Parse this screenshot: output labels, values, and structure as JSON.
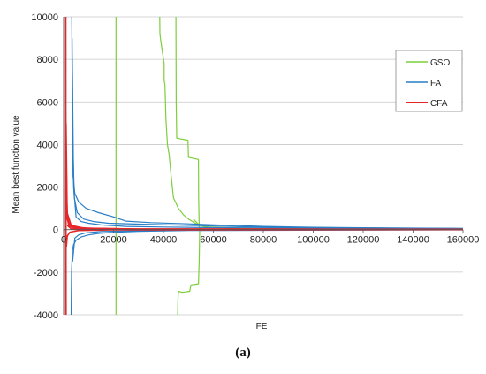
{
  "caption": "(a)",
  "chart_data": {
    "type": "line",
    "xlabel": "FE",
    "ylabel": "Mean best function value",
    "xlim": [
      0,
      160000
    ],
    "ylim": [
      -4000,
      10000
    ],
    "x_ticks": [
      "0",
      "20000",
      "40000",
      "60000",
      "80000",
      "100000",
      "120000",
      "140000",
      "160000"
    ],
    "y_ticks": [
      "-4000",
      "-2000",
      "0",
      "2000",
      "4000",
      "6000",
      "8000",
      "10000"
    ],
    "grid": "horizontal",
    "legend_position": "right",
    "legend": [
      "GSO",
      "FA",
      "CFA"
    ],
    "colors": {
      "GSO": "#7dce3c",
      "FA": "#2a7fc6",
      "CFA": "#e8262a"
    },
    "series": [
      {
        "name": "GSO",
        "runs": [
          [
            [
              21000,
              10000
            ],
            [
              21000,
              -4000
            ]
          ],
          [
            [
              38500,
              10000
            ],
            [
              38600,
              9200
            ],
            [
              39000,
              8800
            ],
            [
              40300,
              7800
            ],
            [
              40300,
              7000
            ],
            [
              40600,
              6800
            ],
            [
              41000,
              5200
            ],
            [
              41600,
              4000
            ],
            [
              42300,
              3500
            ],
            [
              43000,
              2600
            ],
            [
              44000,
              1500
            ],
            [
              46000,
              1000
            ],
            [
              48000,
              700
            ],
            [
              50000,
              500
            ],
            [
              52000,
              350
            ],
            [
              54000,
              220
            ],
            [
              56000,
              150
            ],
            [
              60000,
              100
            ],
            [
              80000,
              60
            ],
            [
              160000,
              30
            ]
          ],
          [
            [
              45000,
              10000
            ],
            [
              45100,
              6000
            ],
            [
              45300,
              4300
            ],
            [
              49800,
              4200
            ],
            [
              50000,
              3400
            ],
            [
              54000,
              3300
            ],
            [
              54100,
              1500
            ],
            [
              54300,
              200
            ],
            [
              54500,
              0
            ],
            [
              54300,
              -1500
            ],
            [
              54000,
              -2550
            ],
            [
              51000,
              -2600
            ],
            [
              50500,
              -2900
            ],
            [
              47500,
              -2950
            ],
            [
              46000,
              -2900
            ],
            [
              45800,
              -3300
            ],
            [
              45700,
              -4000
            ]
          ],
          [
            [
              52000,
              500
            ],
            [
              54000,
              250
            ],
            [
              58000,
              120
            ],
            [
              70000,
              60
            ],
            [
              160000,
              25
            ]
          ]
        ]
      },
      {
        "name": "FA",
        "runs": [
          [
            [
              3300,
              10000
            ],
            [
              3500,
              5000
            ],
            [
              3800,
              2500
            ],
            [
              4500,
              1700
            ],
            [
              6000,
              1300
            ],
            [
              9000,
              1000
            ],
            [
              14000,
              800
            ],
            [
              20000,
              600
            ],
            [
              25000,
              400
            ],
            [
              35000,
              330
            ],
            [
              50000,
              270
            ],
            [
              60000,
              220
            ],
            [
              70000,
              190
            ],
            [
              80000,
              150
            ],
            [
              100000,
              110
            ],
            [
              130000,
              80
            ],
            [
              160000,
              60
            ]
          ],
          [
            [
              3400,
              9000
            ],
            [
              3700,
              4000
            ],
            [
              4300,
              1500
            ],
            [
              5500,
              800
            ],
            [
              8000,
              500
            ],
            [
              12000,
              380
            ],
            [
              18000,
              300
            ],
            [
              30000,
              260
            ],
            [
              50000,
              200
            ],
            [
              70000,
              140
            ],
            [
              90000,
              100
            ],
            [
              160000,
              50
            ]
          ],
          [
            [
              3500,
              8000
            ],
            [
              4000,
              2000
            ],
            [
              5000,
              600
            ],
            [
              7000,
              380
            ],
            [
              10000,
              300
            ],
            [
              15000,
              220
            ],
            [
              25000,
              150
            ],
            [
              40000,
              120
            ],
            [
              60000,
              90
            ],
            [
              160000,
              40
            ]
          ],
          [
            [
              3000,
              -4000
            ],
            [
              3200,
              -2000
            ],
            [
              3500,
              -1000
            ],
            [
              4000,
              -700
            ],
            [
              5000,
              -500
            ],
            [
              7000,
              -350
            ],
            [
              10000,
              -250
            ],
            [
              14000,
              -180
            ],
            [
              20000,
              -130
            ],
            [
              30000,
              -80
            ],
            [
              50000,
              -40
            ],
            [
              160000,
              -10
            ]
          ],
          [
            [
              3600,
              -1500
            ],
            [
              4500,
              -400
            ],
            [
              6000,
              -250
            ],
            [
              9000,
              -150
            ],
            [
              15000,
              -90
            ],
            [
              30000,
              -50
            ],
            [
              60000,
              -20
            ],
            [
              160000,
              -5
            ]
          ]
        ]
      },
      {
        "name": "CFA",
        "runs": [
          [
            [
              600,
              10000
            ],
            [
              600,
              -4000
            ]
          ],
          [
            [
              900,
              10000
            ],
            [
              1000,
              -4000
            ]
          ],
          [
            [
              1100,
              3000
            ],
            [
              1300,
              900
            ],
            [
              2000,
              300
            ],
            [
              4000,
              120
            ],
            [
              10000,
              60
            ],
            [
              30000,
              30
            ],
            [
              160000,
              15
            ]
          ],
          [
            [
              1200,
              1500
            ],
            [
              1600,
              500
            ],
            [
              2500,
              200
            ],
            [
              6000,
              80
            ],
            [
              20000,
              30
            ],
            [
              160000,
              10
            ]
          ],
          [
            [
              1000,
              5000
            ],
            [
              1400,
              800
            ],
            [
              3000,
              200
            ],
            [
              8000,
              70
            ],
            [
              30000,
              25
            ],
            [
              160000,
              8
            ]
          ],
          [
            [
              1300,
              600
            ],
            [
              2200,
              150
            ],
            [
              5000,
              60
            ],
            [
              15000,
              20
            ],
            [
              160000,
              5
            ]
          ],
          [
            [
              1500,
              200
            ],
            [
              3000,
              40
            ],
            [
              10000,
              10
            ],
            [
              160000,
              2
            ]
          ],
          [
            [
              1100,
              -800
            ],
            [
              1500,
              -300
            ],
            [
              2500,
              -120
            ],
            [
              6000,
              -40
            ],
            [
              20000,
              -10
            ],
            [
              160000,
              0
            ]
          ]
        ]
      }
    ]
  }
}
